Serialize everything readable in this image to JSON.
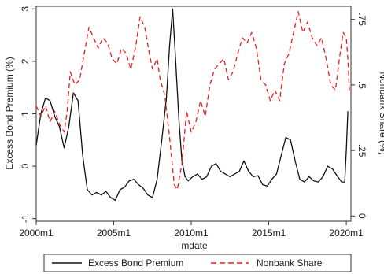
{
  "chart_data": {
    "type": "line",
    "title": "",
    "xlabel": "mdate",
    "ylabel_left": "Excess Bond Premium (%)",
    "ylabel_right": "Nonbank Share (%)",
    "xlim": [
      2000,
      2020.3
    ],
    "ylim_left": [
      -1.05,
      3.05
    ],
    "ylim_right": [
      -0.02,
      0.8
    ],
    "x_ticks": [
      {
        "value": 2000,
        "label": "2000m1"
      },
      {
        "value": 2005,
        "label": "2005m1"
      },
      {
        "value": 2010,
        "label": "2010m1"
      },
      {
        "value": 2015,
        "label": "2015m1"
      },
      {
        "value": 2020,
        "label": "2020m1"
      }
    ],
    "y_ticks_left": [
      {
        "value": -1,
        "label": "-1"
      },
      {
        "value": 0,
        "label": "0"
      },
      {
        "value": 1,
        "label": "1"
      },
      {
        "value": 2,
        "label": "2"
      },
      {
        "value": 3,
        "label": "3"
      }
    ],
    "y_ticks_right": [
      {
        "value": 0,
        "label": "0"
      },
      {
        "value": 0.25,
        "label": ".25"
      },
      {
        "value": 0.5,
        "label": ".5"
      },
      {
        "value": 0.75,
        "label": ".75"
      }
    ],
    "grid": false,
    "legend": "bottom",
    "series": [
      {
        "name": "Excess Bond Premium",
        "axis": "left",
        "color": "#111111",
        "dash": "solid",
        "x": [
          2000.0,
          2000.3,
          2000.6,
          2000.9,
          2001.2,
          2001.5,
          2001.8,
          2002.1,
          2002.4,
          2002.7,
          2003.0,
          2003.3,
          2003.6,
          2003.9,
          2004.2,
          2004.5,
          2004.8,
          2005.1,
          2005.4,
          2005.7,
          2006.0,
          2006.3,
          2006.6,
          2006.9,
          2007.2,
          2007.5,
          2007.8,
          2008.1,
          2008.4,
          2008.6,
          2008.8,
          2009.0,
          2009.2,
          2009.4,
          2009.6,
          2009.8,
          2010.1,
          2010.4,
          2010.7,
          2011.0,
          2011.3,
          2011.6,
          2011.9,
          2012.2,
          2012.5,
          2012.8,
          2013.1,
          2013.4,
          2013.7,
          2014.0,
          2014.3,
          2014.6,
          2014.9,
          2015.2,
          2015.5,
          2015.8,
          2016.1,
          2016.4,
          2016.7,
          2017.0,
          2017.3,
          2017.6,
          2017.9,
          2018.2,
          2018.5,
          2018.8,
          2019.1,
          2019.4,
          2019.7,
          2019.9,
          2020.0,
          2020.1
        ],
        "values": [
          0.4,
          1.0,
          1.3,
          1.25,
          0.95,
          0.75,
          0.35,
          0.75,
          1.4,
          1.25,
          0.2,
          -0.45,
          -0.55,
          -0.5,
          -0.55,
          -0.48,
          -0.6,
          -0.65,
          -0.45,
          -0.4,
          -0.28,
          -0.25,
          -0.35,
          -0.42,
          -0.55,
          -0.6,
          -0.25,
          0.5,
          1.3,
          2.3,
          3.0,
          2.0,
          0.9,
          0.1,
          -0.2,
          -0.28,
          -0.2,
          -0.15,
          -0.25,
          -0.2,
          0.0,
          0.05,
          -0.1,
          -0.15,
          -0.2,
          -0.15,
          -0.1,
          0.1,
          -0.1,
          -0.2,
          -0.18,
          -0.35,
          -0.38,
          -0.25,
          -0.15,
          0.2,
          0.55,
          0.5,
          0.1,
          -0.25,
          -0.3,
          -0.2,
          -0.28,
          -0.3,
          -0.2,
          0.0,
          -0.05,
          -0.18,
          -0.3,
          -0.3,
          0.3,
          1.05
        ]
      },
      {
        "name": "Nonbank Share",
        "axis": "right",
        "color": "#ee1c1c",
        "dash": "dashed",
        "x": [
          2000.0,
          2000.3,
          2000.6,
          2000.9,
          2001.2,
          2001.5,
          2001.8,
          2002.0,
          2002.2,
          2002.5,
          2002.8,
          2003.1,
          2003.4,
          2003.7,
          2004.0,
          2004.3,
          2004.6,
          2004.9,
          2005.2,
          2005.5,
          2005.8,
          2006.1,
          2006.4,
          2006.7,
          2007.0,
          2007.3,
          2007.5,
          2007.8,
          2008.0,
          2008.3,
          2008.6,
          2008.9,
          2009.1,
          2009.4,
          2009.7,
          2010.0,
          2010.3,
          2010.6,
          2010.9,
          2011.2,
          2011.5,
          2011.8,
          2012.1,
          2012.4,
          2012.7,
          2013.0,
          2013.3,
          2013.6,
          2013.9,
          2014.2,
          2014.5,
          2014.8,
          2015.1,
          2015.4,
          2015.7,
          2016.0,
          2016.3,
          2016.6,
          2016.9,
          2017.2,
          2017.5,
          2017.8,
          2018.1,
          2018.4,
          2018.7,
          2019.0,
          2019.3,
          2019.6,
          2019.8,
          2020.0,
          2020.1,
          2020.2
        ],
        "values": [
          0.42,
          0.38,
          0.42,
          0.36,
          0.4,
          0.35,
          0.32,
          0.4,
          0.55,
          0.5,
          0.52,
          0.62,
          0.72,
          0.68,
          0.64,
          0.68,
          0.66,
          0.6,
          0.58,
          0.64,
          0.62,
          0.56,
          0.64,
          0.76,
          0.72,
          0.62,
          0.56,
          0.6,
          0.52,
          0.46,
          0.3,
          0.12,
          0.1,
          0.2,
          0.4,
          0.32,
          0.36,
          0.44,
          0.38,
          0.5,
          0.56,
          0.58,
          0.6,
          0.52,
          0.55,
          0.62,
          0.68,
          0.66,
          0.7,
          0.64,
          0.52,
          0.5,
          0.44,
          0.48,
          0.44,
          0.58,
          0.62,
          0.7,
          0.78,
          0.7,
          0.74,
          0.68,
          0.65,
          0.68,
          0.6,
          0.5,
          0.48,
          0.62,
          0.7,
          0.68,
          0.6,
          0.48
        ]
      }
    ]
  }
}
